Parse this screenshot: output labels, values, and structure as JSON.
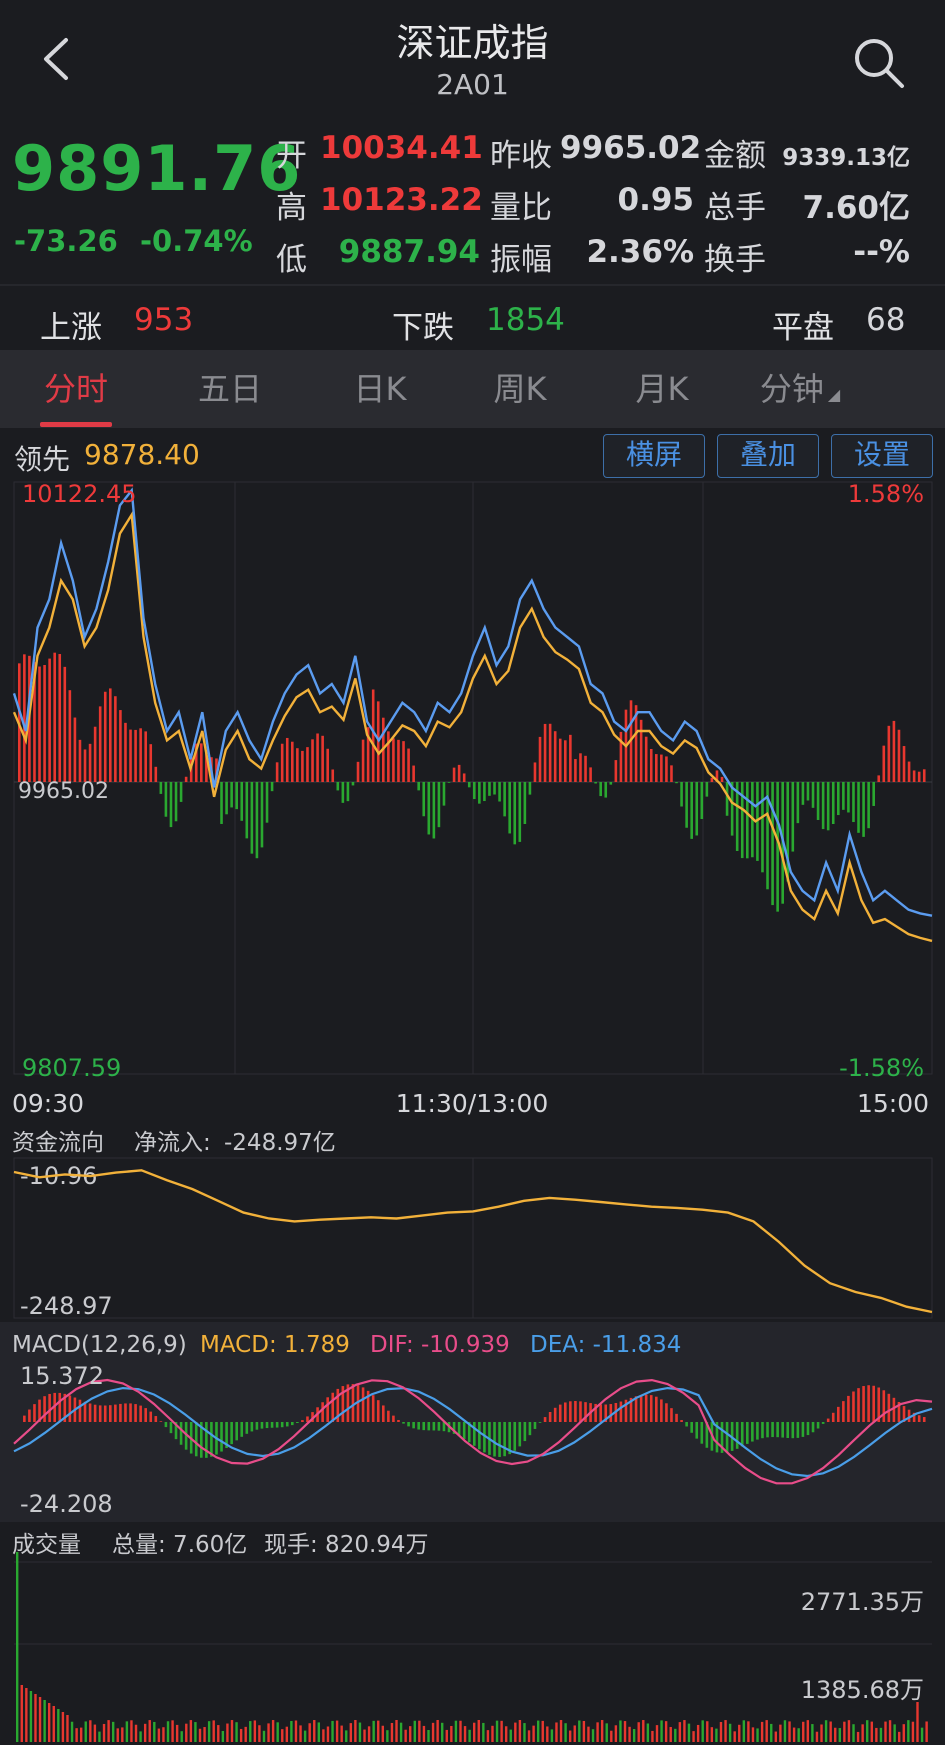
{
  "header": {
    "title": "深证成指",
    "code": "2A01",
    "back_icon": "chevron-left-icon",
    "search_icon": "search-icon"
  },
  "quote": {
    "price": "9891.76",
    "change": "-73.26",
    "change_pct": "-0.74%",
    "rows": [
      {
        "l1": "开",
        "v1": "10034.41",
        "l2": "昨收",
        "v2": "9965.02",
        "l3": "金额",
        "v3": "9339.13亿"
      },
      {
        "l1": "高",
        "v1": "10123.22",
        "l2": "量比",
        "v2": "0.95",
        "l3": "总手",
        "v3": "7.60亿"
      },
      {
        "l1": "低",
        "v1": "9887.94",
        "l2": "振幅",
        "v2": "2.36%",
        "l3": "换手",
        "v3": "--%"
      }
    ]
  },
  "breadth": {
    "up_label": "上涨",
    "up": "953",
    "down_label": "下跌",
    "down": "1854",
    "flat_label": "平盘",
    "flat": "68"
  },
  "tabs": [
    "分时",
    "五日",
    "日K",
    "周K",
    "月K",
    "分钟"
  ],
  "toolbar": {
    "lead_label": "领先",
    "lead_value": "9878.40",
    "landscape": "横屏",
    "overlay": "叠加",
    "settings": "设置"
  },
  "main_chart": {
    "high_label": "10122.45",
    "low_label": "9807.59",
    "base_label": "9965.02",
    "pct_high": "1.58%",
    "pct_low": "-1.58%",
    "time_start": "09:30",
    "time_mid": "11:30/13:00",
    "time_end": "15:00",
    "ylim": [
      9807.59,
      10122.45
    ],
    "colors": {
      "price": "#5b9cf0",
      "avg": "#f2b13a",
      "up": "#e8372f",
      "down": "#2aa830"
    }
  },
  "fund_flow": {
    "title": "资金流向",
    "net_label": "净流入:",
    "net_value": "-248.97亿",
    "top_label": "-10.96",
    "bottom_label": "-248.97",
    "color": "#f2b13a"
  },
  "macd": {
    "title": "MACD(12,26,9)",
    "macd_label": "MACD: 1.789",
    "dif_label": "DIF: -10.939",
    "dea_label": "DEA: -11.834",
    "top_label": "15.372",
    "bottom_label": "-24.208",
    "colors": {
      "macd": "#f2b13a",
      "dif": "#e84d8a",
      "dea": "#4a9ee8"
    }
  },
  "volume": {
    "title": "成交量",
    "total": "总量: 7.60亿",
    "now": "现手: 820.94万",
    "top_label": "2771.35万",
    "mid_label": "1385.68万"
  },
  "chart_data": {
    "type": "line",
    "x_range": [
      "09:30",
      "15:00"
    ],
    "ylim": [
      9807.59,
      10122.45
    ],
    "series": [
      {
        "values": [
          10010,
          9990,
          10045,
          10060,
          10090,
          10070,
          10040,
          10055,
          10080,
          10110,
          10118,
          10050,
          10015,
          9990,
          10000,
          9975,
          10000,
          9960,
          9990,
          10000,
          9985,
          9975,
          9995,
          10010,
          10020,
          10025,
          10010,
          10015,
          10005,
          10030,
          9995,
          9985,
          9995,
          10005,
          10000,
          9990,
          10005,
          10000,
          10010,
          10030,
          10045,
          10025,
          10035,
          10060,
          10070,
          10055,
          10045,
          10040,
          10035,
          10015,
          10010,
          9995,
          9990,
          10000,
          10000,
          9990,
          9985,
          9995,
          9990,
          9975,
          9970,
          9960,
          9955,
          9950,
          9955,
          9940,
          9915,
          9905,
          9900,
          9920,
          9905,
          9935,
          9915,
          9900,
          9905,
          9900,
          9895,
          9893,
          9891.76
        ]
      },
      {
        "values": [
          10000,
          9985,
          10030,
          10045,
          10070,
          10060,
          10035,
          10045,
          10065,
          10095,
          10105,
          10040,
          10005,
          9985,
          9990,
          9970,
          9990,
          9955,
          9980,
          9990,
          9975,
          9970,
          9985,
          9998,
          10008,
          10012,
          10000,
          10003,
          9996,
          10018,
          9988,
          9978,
          9985,
          9993,
          9990,
          9982,
          9995,
          9992,
          10000,
          10018,
          10030,
          10015,
          10022,
          10045,
          10055,
          10040,
          10032,
          10028,
          10023,
          10005,
          10000,
          9988,
          9982,
          9990,
          9990,
          9982,
          9978,
          9985,
          9981,
          9968,
          9962,
          9952,
          9948,
          9942,
          9946,
          9930,
          9905,
          9895,
          9890,
          9905,
          9893,
          9920,
          9900,
          9888,
          9890,
          9886,
          9882,
          9880,
          9878.4
        ]
      }
    ]
  }
}
